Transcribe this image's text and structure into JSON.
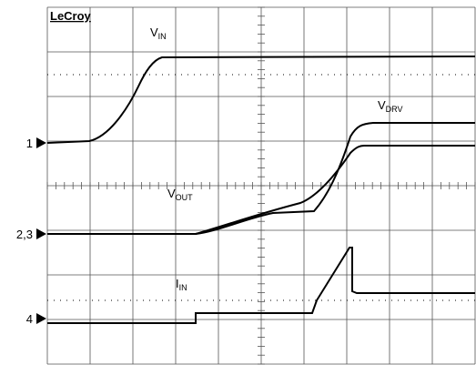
{
  "brand": "LeCroy",
  "labels": {
    "vin": {
      "main": "V",
      "sub": "IN"
    },
    "vdrv": {
      "main": "V",
      "sub": "DRV"
    },
    "vout": {
      "main": "V",
      "sub": "OUT"
    },
    "iin": {
      "main": "I",
      "sub": "IN"
    }
  },
  "channels": [
    "1",
    "2,3",
    "4"
  ]
}
